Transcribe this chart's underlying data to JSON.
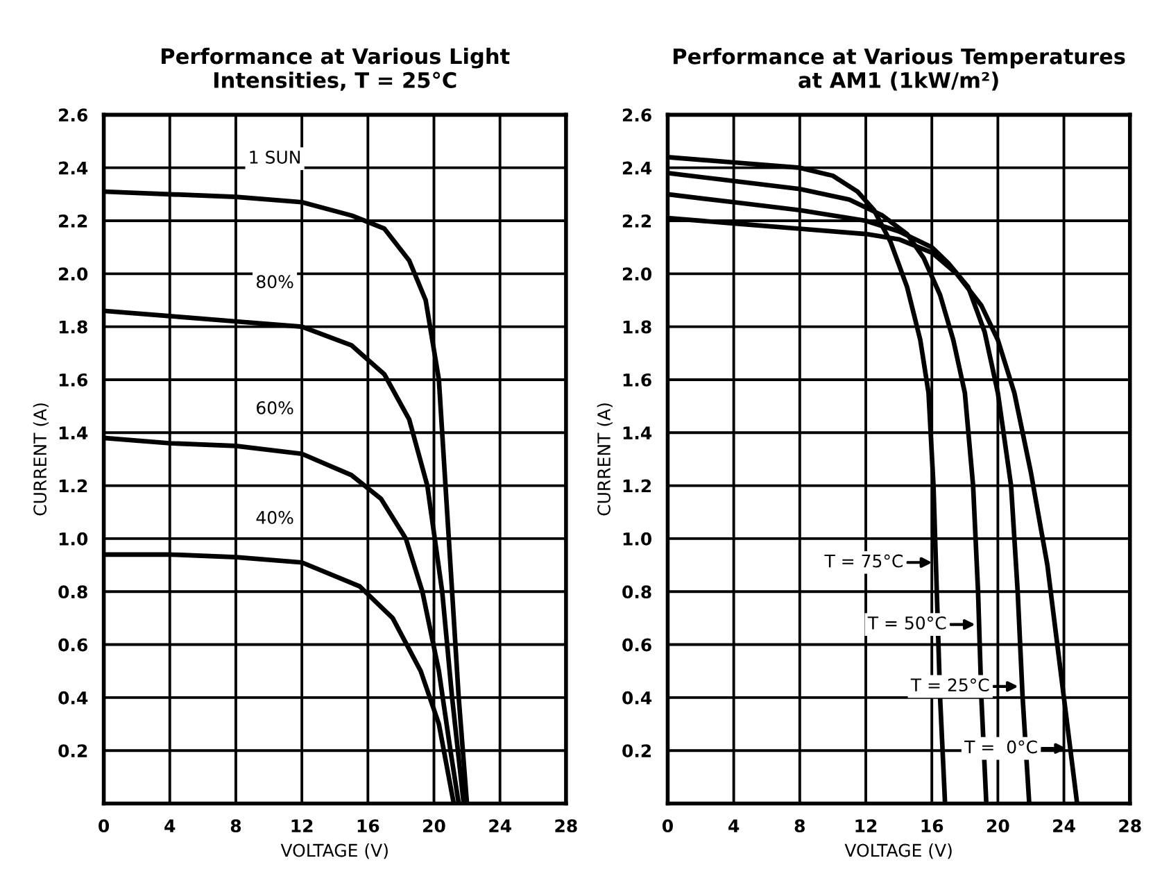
{
  "chart_data": [
    {
      "type": "line",
      "title": "Performance at Various Light\nIntensities, T = 25°C",
      "xlabel": "VOLTAGE (V)",
      "ylabel": "CURRENT (A)",
      "xlim": [
        0,
        28
      ],
      "ylim": [
        0,
        2.6
      ],
      "xticks": [
        0,
        4,
        8,
        12,
        16,
        20,
        24,
        28
      ],
      "yticks": [
        {
          "value": 0,
          "label": null
        },
        0.2,
        0.4,
        0.6,
        0.8,
        {
          "value": 1,
          "label": "1.0"
        },
        1.2,
        1.4,
        1.6,
        1.8,
        {
          "value": 2,
          "label": "2.0"
        },
        2.2,
        2.4,
        2.6
      ],
      "grid": true,
      "marker": "none",
      "line_style": "solid",
      "series": [
        {
          "name": "1 SUN",
          "color": "#000000",
          "x": [
            0,
            4,
            8,
            12,
            15,
            17,
            18.5,
            19.5,
            20.3,
            20.7,
            21.1,
            21.5,
            22
          ],
          "values": [
            2.31,
            2.3,
            2.29,
            2.27,
            2.22,
            2.17,
            2.05,
            1.9,
            1.6,
            1.2,
            0.8,
            0.4,
            0
          ]
        },
        {
          "name": "80%",
          "color": "#000000",
          "x": [
            0,
            4,
            8,
            12,
            15,
            17,
            18.5,
            19.6,
            20.5,
            21.1,
            21.8
          ],
          "values": [
            1.86,
            1.84,
            1.82,
            1.8,
            1.73,
            1.62,
            1.45,
            1.2,
            0.8,
            0.4,
            0
          ]
        },
        {
          "name": "60%",
          "color": "#000000",
          "x": [
            0,
            4,
            8,
            12,
            15,
            16.8,
            18.3,
            19.3,
            20.3,
            21,
            21.5
          ],
          "values": [
            1.38,
            1.36,
            1.35,
            1.32,
            1.24,
            1.15,
            1.0,
            0.8,
            0.5,
            0.2,
            0
          ]
        },
        {
          "name": "40%",
          "color": "#000000",
          "x": [
            0,
            4,
            8,
            12,
            15.5,
            17.5,
            19.2,
            20.3,
            21.2
          ],
          "values": [
            0.94,
            0.94,
            0.93,
            0.91,
            0.82,
            0.7,
            0.5,
            0.3,
            0
          ]
        }
      ]
    },
    {
      "type": "line",
      "title": "Performance at Various Temperatures\nat AM1 (1kW/m²)",
      "xlabel": "VOLTAGE (V)",
      "ylabel": "CURRENT (A)",
      "xlim": [
        0,
        28
      ],
      "ylim": [
        0,
        2.6
      ],
      "xticks": [
        0,
        4,
        8,
        12,
        16,
        20,
        24,
        28
      ],
      "yticks": [
        {
          "value": 0,
          "label": null
        },
        0.2,
        0.4,
        0.6,
        0.8,
        {
          "value": 1,
          "label": "1.0"
        },
        1.2,
        1.4,
        1.6,
        1.8,
        {
          "value": 2,
          "label": "2.0"
        },
        2.2,
        2.4,
        2.6
      ],
      "grid": true,
      "legend": "bottom",
      "marker": "none",
      "line_style": "solid",
      "series": [
        {
          "name": "T = 75°C",
          "color": "#000000",
          "x": [
            0,
            4,
            8,
            10,
            11.5,
            12.5,
            13.5,
            14.5,
            15.3,
            15.8,
            16.1,
            16.3,
            16.5,
            16.8
          ],
          "values": [
            2.44,
            2.42,
            2.4,
            2.37,
            2.31,
            2.24,
            2.12,
            1.95,
            1.75,
            1.55,
            1.2,
            0.8,
            0.4,
            0
          ]
        },
        {
          "name": "T = 50°C",
          "color": "#000000",
          "x": [
            0,
            4,
            8,
            11,
            13,
            14.5,
            15.5,
            16.5,
            17.3,
            18,
            18.5,
            18.8,
            19,
            19.3
          ],
          "values": [
            2.38,
            2.35,
            2.32,
            2.28,
            2.22,
            2.15,
            2.06,
            1.92,
            1.75,
            1.55,
            1.2,
            0.8,
            0.4,
            0
          ]
        },
        {
          "name": "T = 25°C",
          "color": "#000000",
          "x": [
            0,
            4,
            8,
            12,
            14,
            16,
            17,
            18.2,
            19.2,
            20,
            20.8,
            21.2,
            21.5,
            21.9
          ],
          "values": [
            2.3,
            2.27,
            2.24,
            2.2,
            2.16,
            2.1,
            2.04,
            1.95,
            1.78,
            1.55,
            1.2,
            0.8,
            0.4,
            0
          ]
        },
        {
          "name": "T =  0°C",
          "color": "#000000",
          "x": [
            0,
            4,
            8,
            12,
            14,
            16,
            17.5,
            19,
            20,
            21,
            22,
            23,
            23.8,
            24.3,
            24.8
          ],
          "values": [
            2.21,
            2.19,
            2.17,
            2.15,
            2.13,
            2.08,
            2.0,
            1.88,
            1.75,
            1.55,
            1.25,
            0.9,
            0.5,
            0.25,
            0
          ]
        }
      ]
    }
  ]
}
